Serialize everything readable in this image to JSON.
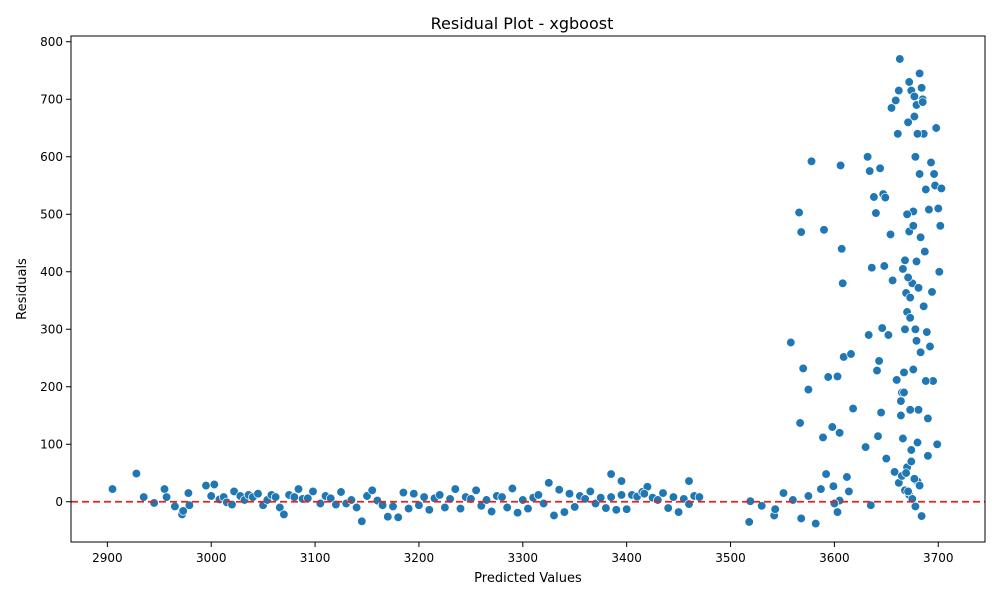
{
  "chart_data": {
    "type": "scatter",
    "title": "Residual Plot - xgboost",
    "xlabel": "Predicted Values",
    "ylabel": "Residuals",
    "xlim": [
      2865,
      3745
    ],
    "ylim": [
      -70,
      810
    ],
    "xticks": [
      2900,
      3000,
      3100,
      3200,
      3300,
      3400,
      3500,
      3600,
      3700
    ],
    "yticks": [
      0,
      100,
      200,
      300,
      400,
      500,
      600,
      700,
      800
    ],
    "grid": false,
    "legend": "none",
    "reference_line": {
      "y": 0,
      "style": "dashed",
      "color": "#e8221b"
    },
    "point_color": "#1f77b4",
    "series": [
      {
        "x": [
          2905,
          2928,
          2935,
          2945,
          2955,
          2957,
          2965,
          2972,
          2973,
          2978,
          2979,
          2995,
          3000,
          3003,
          3008,
          3012,
          3015,
          3020,
          3022,
          3028,
          3032,
          3036,
          3040,
          3045,
          3050,
          3054,
          3058,
          3062,
          3066,
          3070,
          3075,
          3080,
          3084,
          3088,
          3093,
          3098,
          3105,
          3110,
          3115,
          3120,
          3125,
          3130,
          3135,
          3140,
          3145,
          3150,
          3155,
          3160,
          3165,
          3170,
          3175,
          3180,
          3185,
          3190,
          3195,
          3200,
          3205,
          3210,
          3215,
          3220,
          3225,
          3230,
          3235,
          3240,
          3245,
          3250,
          3255,
          3260,
          3265,
          3270,
          3275,
          3280,
          3285,
          3290,
          3295,
          3300,
          3305,
          3310,
          3315,
          3320,
          3325,
          3330,
          3335,
          3340,
          3345,
          3350,
          3355,
          3360,
          3365,
          3370,
          3375,
          3380,
          3385,
          3390,
          3395,
          3400,
          3405,
          3410,
          3415,
          3420,
          3425,
          3430,
          3435,
          3440,
          3445,
          3450,
          3455,
          3460,
          3465,
          3470,
          3385,
          3395,
          3417,
          3460,
          3518,
          3519,
          3530,
          3542,
          3543,
          3551,
          3560,
          3568,
          3575,
          3582,
          3599,
          3603,
          3605,
          3558,
          3566,
          3567,
          3568,
          3570,
          3575,
          3578,
          3587,
          3589,
          3590,
          3592,
          3594,
          3598,
          3600,
          3603,
          3605,
          3606,
          3607,
          3608,
          3609,
          3612,
          3614,
          3616,
          3618,
          3630,
          3632,
          3633,
          3634,
          3635,
          3636,
          3638,
          3640,
          3641,
          3642,
          3643,
          3644,
          3645,
          3646,
          3647,
          3648,
          3649,
          3650,
          3652,
          3654,
          3655,
          3656,
          3658,
          3659,
          3660,
          3661,
          3662,
          3663,
          3664,
          3665,
          3666,
          3667,
          3668,
          3669,
          3670,
          3671,
          3672,
          3673,
          3674,
          3675,
          3676,
          3677,
          3678,
          3679,
          3680,
          3681,
          3682,
          3683,
          3684,
          3685,
          3686,
          3687,
          3688,
          3689,
          3690,
          3691,
          3692,
          3693,
          3694,
          3695,
          3696,
          3697,
          3698,
          3699,
          3700,
          3701,
          3702,
          3703,
          3662,
          3665,
          3668,
          3670,
          3672,
          3675,
          3678,
          3680,
          3682,
          3684,
          3669,
          3674,
          3677,
          3671,
          3676,
          3681,
          3667,
          3673,
          3679,
          3683,
          3664,
          3686,
          3688,
          3690,
          3666,
          3668,
          3671,
          3673,
          3676,
          3678,
          3680,
          3670,
          3674,
          3679,
          3682,
          3685,
          3672,
          3677
        ],
        "y": [
          22,
          49,
          8,
          -2,
          22,
          8,
          -8,
          -22,
          -16,
          15,
          -6,
          28,
          10,
          30,
          4,
          8,
          -1,
          -5,
          18,
          10,
          3,
          12,
          8,
          14,
          -6,
          3,
          12,
          8,
          -10,
          -22,
          12,
          8,
          22,
          5,
          6,
          18,
          -3,
          10,
          6,
          -5,
          17,
          -3,
          3,
          -10,
          -34,
          10,
          20,
          2,
          -6,
          -26,
          -8,
          -27,
          16,
          -12,
          14,
          -6,
          8,
          -14,
          6,
          12,
          -10,
          5,
          22,
          -12,
          8,
          5,
          20,
          -7,
          3,
          -17,
          10,
          8,
          -10,
          23,
          -19,
          3,
          -12,
          7,
          12,
          -3,
          33,
          -24,
          21,
          -18,
          14,
          -9,
          10,
          5,
          18,
          -3,
          7,
          -11,
          48,
          -14,
          36,
          -13,
          12,
          9,
          17,
          26,
          7,
          3,
          15,
          -11,
          8,
          -18,
          5,
          36,
          10,
          8,
          8,
          12,
          14,
          -4,
          -35,
          1,
          -7,
          -24,
          -13,
          15,
          3,
          -29,
          10,
          -38,
          27,
          -18,
          2,
          277,
          503,
          137,
          469,
          232,
          195,
          592,
          22,
          112,
          473,
          48,
          217,
          130,
          -3,
          218,
          120,
          585,
          440,
          380,
          252,
          43,
          18,
          257,
          162,
          95,
          600,
          290,
          575,
          -6,
          407,
          530,
          502,
          228,
          114,
          245,
          580,
          155,
          302,
          535,
          410,
          529,
          75,
          290,
          465,
          685,
          385,
          52,
          698,
          212,
          640,
          33,
          770,
          175,
          190,
          405,
          225,
          300,
          363,
          330,
          660,
          470,
          160,
          90,
          380,
          505,
          670,
          300,
          418,
          103,
          372,
          570,
          460,
          720,
          700,
          640,
          435,
          543,
          295,
          80,
          508,
          270,
          590,
          365,
          210,
          570,
          550,
          650,
          100,
          510,
          400,
          480,
          545,
          715,
          45,
          20,
          60,
          12,
          5,
          -8,
          35,
          28,
          -25,
          50,
          70,
          40,
          18,
          230,
          160,
          190,
          320,
          280,
          260,
          150,
          340,
          210,
          145,
          110,
          420,
          390,
          355,
          480,
          600,
          640,
          500,
          715,
          690,
          745,
          695,
          730,
          705
        ]
      }
    ]
  }
}
